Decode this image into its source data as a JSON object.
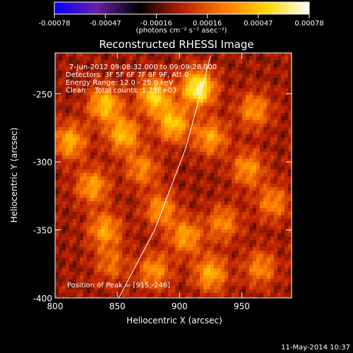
{
  "chart_data": {
    "type": "heatmap",
    "title": "Reconstructed RHESSI Image",
    "xlabel": "Heliocentric X (arcsec)",
    "ylabel": "Heliocentric Y (arcsec)",
    "xlim": [
      800,
      990
    ],
    "ylim": [
      -400,
      -220
    ],
    "x_ticks": [
      "800",
      "850",
      "900",
      "950"
    ],
    "y_ticks": [
      "-250",
      "-300",
      "-350",
      "-400"
    ],
    "colorbar": {
      "ticks": [
        "-0.00078",
        "-0.00047",
        "-0.00016",
        "0.00016",
        "0.00047",
        "0.00078"
      ],
      "unit_label": "(photons cm⁻² s⁻¹ asec⁻²)",
      "range": [
        -0.00078,
        0.00078
      ],
      "colormap": [
        "#0000ff",
        "#6b1fa8",
        "#000000",
        "#b81f00",
        "#ff7a00",
        "#ffd800",
        "#ffffff"
      ]
    },
    "annotations": [
      "7-Jun-2012 09:08:32.000 to 09:09:28.000",
      "Detectors: 3F 5F 6F 7F 8F 9F, Att 0",
      "Energy Range: 12.0 - 25.0 keV",
      "Clean    Total counts: 1.23E+03"
    ],
    "peak_label": "Position of Peak = [915,-246]",
    "peak": [
      915,
      -246
    ],
    "sources": [
      {
        "x": 915,
        "y": -246,
        "amp": 1.0
      },
      {
        "x": 880,
        "y": -252,
        "amp": 0.75
      },
      {
        "x": 840,
        "y": -258,
        "amp": 0.7
      },
      {
        "x": 855,
        "y": -280,
        "amp": 0.65
      },
      {
        "x": 812,
        "y": -285,
        "amp": 0.6
      },
      {
        "x": 895,
        "y": -272,
        "amp": 0.7
      },
      {
        "x": 925,
        "y": -282,
        "amp": 0.55
      },
      {
        "x": 960,
        "y": -262,
        "amp": 0.5
      },
      {
        "x": 870,
        "y": -305,
        "amp": 0.45
      },
      {
        "x": 830,
        "y": -318,
        "amp": 0.55
      },
      {
        "x": 885,
        "y": -335,
        "amp": 0.5
      },
      {
        "x": 955,
        "y": -305,
        "amp": 0.5
      },
      {
        "x": 840,
        "y": -350,
        "amp": 0.55
      },
      {
        "x": 905,
        "y": -355,
        "amp": 0.55
      },
      {
        "x": 935,
        "y": -345,
        "amp": 0.45
      },
      {
        "x": 975,
        "y": -330,
        "amp": 0.45
      },
      {
        "x": 925,
        "y": -382,
        "amp": 0.6
      },
      {
        "x": 965,
        "y": -378,
        "amp": 0.45
      },
      {
        "x": 880,
        "y": -380,
        "amp": 0.5
      },
      {
        "x": 845,
        "y": -375,
        "amp": 0.35
      }
    ],
    "limb_curve": [
      [
        850,
        -402
      ],
      [
        880,
        -350
      ],
      [
        905,
        -290
      ],
      [
        925,
        -222
      ]
    ]
  },
  "footer": {
    "timestamp": "11-May-2014 10:37"
  }
}
